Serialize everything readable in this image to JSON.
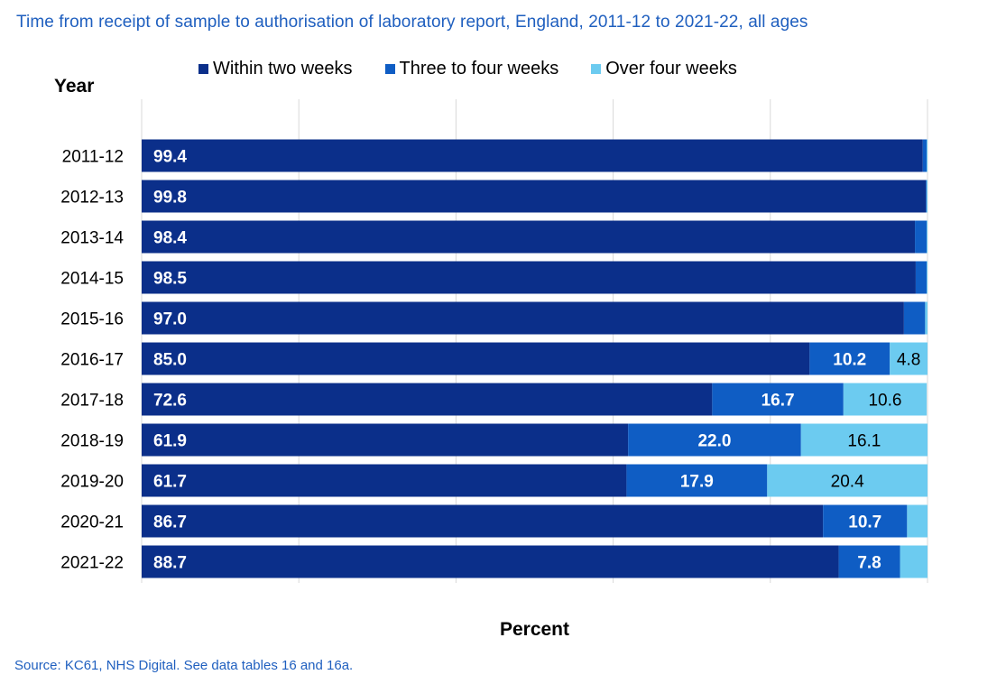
{
  "chart_data": {
    "type": "bar",
    "orientation": "horizontal",
    "stacked": true,
    "title": "Time from receipt of sample to authorisation of laboratory report, England, 2011-12 to 2021-22, all ages",
    "xlabel": "Percent",
    "ylabel": "Year",
    "xlim": [
      0,
      100
    ],
    "grid": true,
    "legend_position": "top",
    "categories": [
      "2011-12",
      "2012-13",
      "2013-14",
      "2014-15",
      "2015-16",
      "2016-17",
      "2017-18",
      "2018-19",
      "2019-20",
      "2020-21",
      "2021-22"
    ],
    "series": [
      {
        "name": "Within two weeks",
        "color": "#0b2f8a",
        "values": [
          99.4,
          99.8,
          98.4,
          98.5,
          97.0,
          85.0,
          72.6,
          61.9,
          61.7,
          86.7,
          88.7
        ],
        "labels": [
          "99.4",
          "99.8",
          "98.4",
          "98.5",
          "97.0",
          "85.0",
          "72.6",
          "61.9",
          "61.7",
          "86.7",
          "88.7"
        ]
      },
      {
        "name": "Three to four weeks",
        "color": "#0f5dc4",
        "values": [
          0.5,
          0.1,
          1.5,
          1.4,
          2.7,
          10.2,
          16.7,
          22.0,
          17.9,
          10.7,
          7.8
        ],
        "labels": [
          "",
          "",
          "",
          "",
          "",
          "10.2",
          "16.7",
          "22.0",
          "17.9",
          "10.7",
          "7.8"
        ]
      },
      {
        "name": "Over four weeks",
        "color": "#6ccbf0",
        "values": [
          0.1,
          0.1,
          0.1,
          0.1,
          0.3,
          4.8,
          10.6,
          16.1,
          20.4,
          2.6,
          3.5
        ],
        "labels": [
          "",
          "",
          "",
          "",
          "",
          "4.8",
          "10.6",
          "16.1",
          "20.4",
          "",
          ""
        ]
      }
    ]
  },
  "source_note": "Source: KC61, NHS Digital. See data tables 16 and 16a."
}
